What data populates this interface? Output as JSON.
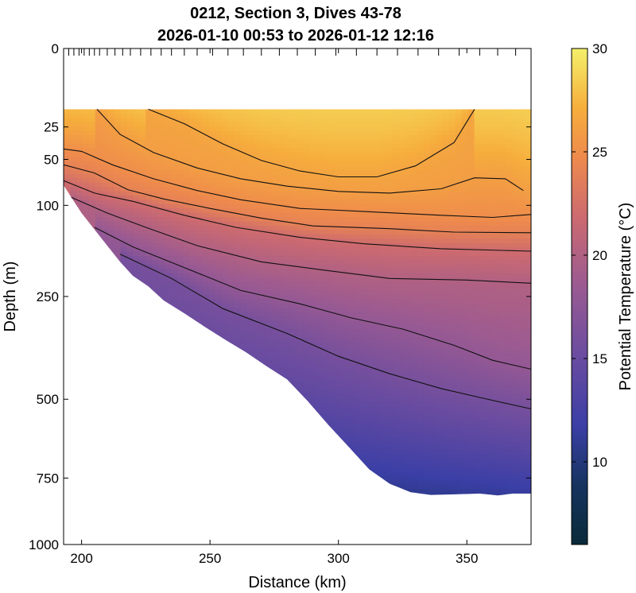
{
  "chart_data": {
    "type": "heatmap",
    "title": "0212, Section 3, Dives 43-78",
    "subtitle": "2026-01-10 00:53 to 2026-01-12 12:16",
    "xlabel": "Distance (km)",
    "ylabel": "Depth (m)",
    "colorbar_label": "Potential Temperature (°C)",
    "xlim": [
      193,
      375
    ],
    "ylim": [
      0,
      1000
    ],
    "y_scale": "sqrt",
    "x_ticks": [
      200,
      250,
      300,
      350
    ],
    "y_ticks": [
      0,
      25,
      50,
      100,
      250,
      500,
      750,
      1000
    ],
    "colorbar_range": [
      6,
      30
    ],
    "colorbar_ticks": [
      10,
      15,
      20,
      25,
      30
    ],
    "colormap": [
      {
        "t": 0.0,
        "color": "#0a2a3a"
      },
      {
        "t": 0.12,
        "color": "#16335f"
      },
      {
        "t": 0.24,
        "color": "#3b3fa6"
      },
      {
        "t": 0.38,
        "color": "#6a4ca0"
      },
      {
        "t": 0.52,
        "color": "#9a5a92"
      },
      {
        "t": 0.66,
        "color": "#cc6a70"
      },
      {
        "t": 0.78,
        "color": "#ee8a4d"
      },
      {
        "t": 0.88,
        "color": "#f6ae3c"
      },
      {
        "t": 1.0,
        "color": "#f4f06a"
      }
    ],
    "data_top_depth": 15,
    "dive_positions_km": [
      195,
      197,
      199,
      201,
      203,
      205,
      207,
      210,
      213,
      216,
      219,
      223,
      227,
      231,
      235,
      240,
      245,
      251,
      257,
      263,
      270,
      277,
      284,
      291,
      299,
      307,
      315,
      323,
      331,
      339,
      347,
      355,
      362,
      369,
      375
    ],
    "bottom_boundary": [
      {
        "x": 193,
        "depth": 76
      },
      {
        "x": 196,
        "depth": 90
      },
      {
        "x": 200,
        "depth": 110
      },
      {
        "x": 205,
        "depth": 133
      },
      {
        "x": 210,
        "depth": 158
      },
      {
        "x": 215,
        "depth": 185
      },
      {
        "x": 220,
        "depth": 210
      },
      {
        "x": 226,
        "depth": 230
      },
      {
        "x": 232,
        "depth": 258
      },
      {
        "x": 240,
        "depth": 285
      },
      {
        "x": 248,
        "depth": 315
      },
      {
        "x": 256,
        "depth": 345
      },
      {
        "x": 264,
        "depth": 375
      },
      {
        "x": 272,
        "depth": 410
      },
      {
        "x": 280,
        "depth": 445
      },
      {
        "x": 288,
        "depth": 505
      },
      {
        "x": 296,
        "depth": 575
      },
      {
        "x": 304,
        "depth": 645
      },
      {
        "x": 312,
        "depth": 720
      },
      {
        "x": 320,
        "depth": 770
      },
      {
        "x": 328,
        "depth": 800
      },
      {
        "x": 336,
        "depth": 810
      },
      {
        "x": 345,
        "depth": 808
      },
      {
        "x": 355,
        "depth": 805
      },
      {
        "x": 362,
        "depth": 812
      },
      {
        "x": 368,
        "depth": 805
      },
      {
        "x": 375,
        "depth": 805
      }
    ],
    "contours": [
      {
        "level": 26.5,
        "points": [
          [
            226,
            15
          ],
          [
            240,
            23
          ],
          [
            255,
            37
          ],
          [
            270,
            51
          ],
          [
            285,
            61
          ],
          [
            300,
            67
          ],
          [
            315,
            67
          ],
          [
            330,
            56
          ],
          [
            345,
            36
          ],
          [
            353,
            15
          ]
        ]
      },
      {
        "level": 26,
        "points": [
          [
            206,
            15
          ],
          [
            215,
            30
          ],
          [
            228,
            44
          ],
          [
            245,
            58
          ],
          [
            262,
            69
          ],
          [
            280,
            77
          ],
          [
            300,
            83
          ],
          [
            320,
            85
          ],
          [
            340,
            80
          ],
          [
            353,
            68
          ],
          [
            365,
            69
          ],
          [
            372,
            82
          ]
        ]
      },
      {
        "level": 25,
        "points": [
          [
            193,
            41
          ],
          [
            200,
            43
          ],
          [
            212,
            55
          ],
          [
            228,
            69
          ],
          [
            245,
            82
          ],
          [
            262,
            93
          ],
          [
            285,
            104
          ],
          [
            310,
            108
          ],
          [
            340,
            113
          ],
          [
            360,
            116
          ],
          [
            375,
            112
          ]
        ]
      },
      {
        "level": 24,
        "points": [
          [
            193,
            55
          ],
          [
            205,
            63
          ],
          [
            218,
            81
          ],
          [
            232,
            92
          ],
          [
            250,
            104
          ],
          [
            270,
            117
          ],
          [
            290,
            128
          ],
          [
            320,
            132
          ],
          [
            345,
            137
          ],
          [
            375,
            138
          ]
        ]
      },
      {
        "level": 22,
        "points": [
          [
            193,
            71
          ],
          [
            205,
            85
          ],
          [
            220,
            95
          ],
          [
            240,
            113
          ],
          [
            260,
            130
          ],
          [
            285,
            145
          ],
          [
            310,
            155
          ],
          [
            340,
            163
          ],
          [
            375,
            167
          ]
        ]
      },
      {
        "level": 20,
        "points": [
          [
            196,
            90
          ],
          [
            210,
            110
          ],
          [
            225,
            130
          ],
          [
            245,
            158
          ],
          [
            270,
            185
          ],
          [
            295,
            200
          ],
          [
            320,
            215
          ],
          [
            350,
            218
          ],
          [
            375,
            224
          ]
        ]
      },
      {
        "level": 18,
        "points": [
          [
            205,
            130
          ],
          [
            220,
            160
          ],
          [
            240,
            195
          ],
          [
            262,
            238
          ],
          [
            285,
            265
          ],
          [
            305,
            295
          ],
          [
            325,
            320
          ],
          [
            345,
            358
          ],
          [
            360,
            395
          ],
          [
            375,
            418
          ]
        ]
      },
      {
        "level": 16,
        "points": [
          [
            215,
            172
          ],
          [
            235,
            215
          ],
          [
            255,
            275
          ],
          [
            280,
            330
          ],
          [
            300,
            385
          ],
          [
            320,
            430
          ],
          [
            340,
            470
          ],
          [
            355,
            495
          ],
          [
            375,
            528
          ]
        ]
      }
    ]
  }
}
